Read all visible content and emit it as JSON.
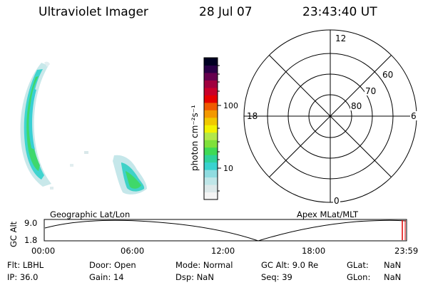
{
  "header": {
    "instrument": "Ultraviolet Imager",
    "date": "28 Jul 07",
    "time": "23:43:40 UT"
  },
  "colorbar": {
    "unit_label": "photon cm⁻²s⁻¹",
    "scale": "log",
    "tick_labels": [
      "100",
      "10"
    ],
    "colors": [
      "#f4f4f4",
      "#dde9ea",
      "#bfe6e8",
      "#8fdce0",
      "#39d2cf",
      "#2fd29a",
      "#3fda55",
      "#7fe03a",
      "#b2e84a",
      "#f2f200",
      "#f0c800",
      "#f39800",
      "#ef5a00",
      "#e60000",
      "#c8002a",
      "#a0003e",
      "#66004e",
      "#2a0046",
      "#000022"
    ]
  },
  "polar_grid": {
    "mlt_labels": {
      "top": "12",
      "left": "18",
      "right": "6",
      "bottom": "0"
    },
    "lat_labels": [
      "60",
      "70",
      "80"
    ]
  },
  "timeline": {
    "left_caption": "Geographic Lat/Lon",
    "right_caption": "Apex MLat/MLT",
    "y_axis_label": "GC Alt",
    "y_ticks": [
      "9.0",
      "1.8"
    ],
    "x_ticks": [
      "00:00",
      "06:00",
      "12:00",
      "18:00",
      "23:59"
    ]
  },
  "status": {
    "flt_label": "Flt:",
    "flt_value": "LBHL",
    "ip_label": "IP:",
    "ip_value": "36.0",
    "door_label": "Door:",
    "door_value": "Open",
    "gain_label": "Gain:",
    "gain_value": "14",
    "mode_label": "Mode:",
    "mode_value": "Normal",
    "dsp_label": "Dsp:",
    "dsp_value": "NaN",
    "gcalt_label": "GC Alt:",
    "gcalt_value": "9.0 Re",
    "seq_label": "Seq:",
    "seq_value": "39",
    "glat_label": "GLat:",
    "glat_value": "NaN",
    "glon_label": "GLon:",
    "glon_value": "NaN"
  }
}
